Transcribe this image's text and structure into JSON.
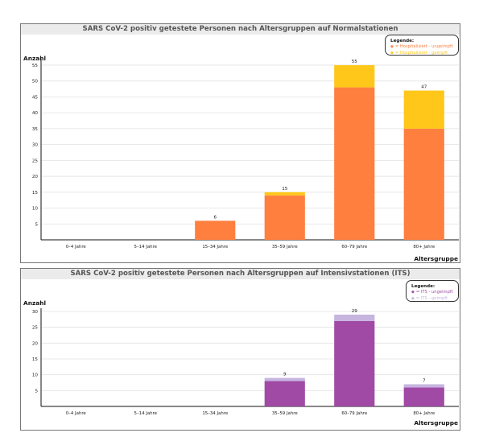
{
  "chart_data": [
    {
      "type": "bar",
      "stacked": true,
      "title": "SARS CoV-2 positiv getestete Personen nach Altersgruppen auf Normalstationen",
      "ylabel": "Anzahl",
      "xlabel": "Altersgruppe",
      "categories": [
        "0–4 Jahre",
        "5–14 Jahre",
        "15–34 Jahre",
        "35–59 Jahre",
        "60–79 Jahre",
        "80+ Jahre"
      ],
      "series": [
        {
          "name": "= Hospitalisiert - ungeimpft",
          "color": "#ff7f3f",
          "values": [
            0,
            0,
            6,
            14,
            48,
            35
          ]
        },
        {
          "name": "= Hospitalisiert - geimpft",
          "color": "#ffc719",
          "values": [
            0,
            0,
            0,
            1,
            7,
            12
          ]
        }
      ],
      "totals": [
        "",
        "",
        "6",
        "15",
        "55",
        "47"
      ],
      "yticks": [
        5,
        10,
        15,
        20,
        25,
        30,
        35,
        40,
        45,
        50,
        55
      ],
      "ylim": [
        0,
        56
      ],
      "grid": true,
      "legend_title": "Legende:",
      "legend_position": "top-right"
    },
    {
      "type": "bar",
      "stacked": true,
      "title": "SARS CoV-2 positiv getestete Personen nach Altersgruppen auf Intensivstationen (ITS)",
      "ylabel": "Anzahl",
      "xlabel": "Altersgruppe",
      "categories": [
        "0–4 Jahre",
        "5–14 Jahre",
        "15–34 Jahre",
        "35–59 Jahre",
        "60–79 Jahre",
        "80+ Jahre"
      ],
      "series": [
        {
          "name": "= ITS - ungeimpft",
          "color": "#a04aa5",
          "values": [
            0,
            0,
            0,
            8,
            27,
            6
          ]
        },
        {
          "name": "= ITS - geimpft",
          "color": "#c6b5df",
          "values": [
            0,
            0,
            0,
            1,
            2,
            1
          ]
        }
      ],
      "totals": [
        "",
        "",
        "",
        "9",
        "29",
        "7"
      ],
      "yticks": [
        5,
        10,
        15,
        20,
        25,
        30
      ],
      "ylim": [
        0,
        30
      ],
      "grid": true,
      "legend_title": "Legende:",
      "legend_position": "top-right"
    }
  ]
}
